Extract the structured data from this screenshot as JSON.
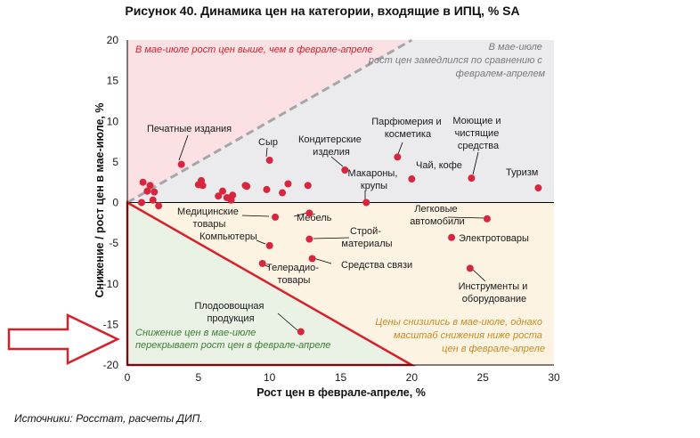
{
  "chart_data": {
    "type": "scatter",
    "title": "Рисунок 40. Динамика цен на категории, входящие в ИПЦ, % SA",
    "xlabel": "Рост цен в феврале-апреле, %",
    "ylabel": "Снижение / рост цен в мае-июле, %",
    "xlim": [
      0,
      30
    ],
    "ylim": [
      -20,
      20
    ],
    "xticks": [
      "0",
      "5",
      "10",
      "15",
      "20",
      "25",
      "30"
    ],
    "yticks": [
      "20",
      "15",
      "10",
      "5",
      "0",
      "-5",
      "-10",
      "-15",
      "-20"
    ],
    "source": "Источники: Росстат, расчеты ДИП.",
    "regions": {
      "upper_left": "В мае-июле рост цен выше, чем в феврале-апреле",
      "upper_right": [
        "В мае-июле",
        "рост цен замедлился по сравнению с",
        "февралем-апрелем"
      ],
      "lower_right": [
        "Цены снизились в мае-июле, однако",
        "масштаб снижения ниже роста",
        "цен в феврале-апреле"
      ],
      "lower_left": [
        "Снижение цен в мае-июле",
        "перекрывает рост цен в феврале-апреле"
      ]
    },
    "labels": {
      "pechatnye": "Печатные издания",
      "syr": "Сыр",
      "konditer": [
        "Кондитерские",
        "изделия"
      ],
      "parfum": [
        "Парфюмерия и",
        "косметика"
      ],
      "moyuschie": [
        "Моющие и",
        "чистящие",
        "средства"
      ],
      "turizm": "Туризм",
      "makarony": [
        "Макароны,",
        "крупы"
      ],
      "chai": "Чай, кофе",
      "medic": [
        "Медицинские",
        "товары"
      ],
      "mebel": "Мебель",
      "avto": [
        "Легковые",
        "автомобили"
      ],
      "kompyutery": "Компьютеры",
      "stroy": [
        "Строй-",
        "материалы"
      ],
      "elektro": "Электротовары",
      "tele": [
        "Телерадио-",
        "товары"
      ],
      "svyaz": "Средства связи",
      "instrumenty": [
        "Инструменты и",
        "оборудование"
      ],
      "plodo": [
        "Плодоовощная",
        "продукция"
      ]
    },
    "points": [
      {
        "x": 3.8,
        "y": 4.7
      },
      {
        "x": 10.0,
        "y": 5.2
      },
      {
        "x": 15.3,
        "y": 4.0
      },
      {
        "x": 19.0,
        "y": 5.6
      },
      {
        "x": 24.2,
        "y": 3.0
      },
      {
        "x": 28.9,
        "y": 1.8
      },
      {
        "x": 16.8,
        "y": 0.0
      },
      {
        "x": 20.0,
        "y": 2.9
      },
      {
        "x": 10.4,
        "y": -1.8
      },
      {
        "x": 12.8,
        "y": -1.3
      },
      {
        "x": 25.3,
        "y": -2.0
      },
      {
        "x": 10.0,
        "y": -5.3
      },
      {
        "x": 12.8,
        "y": -4.5
      },
      {
        "x": 22.8,
        "y": -4.3
      },
      {
        "x": 9.5,
        "y": -7.5
      },
      {
        "x": 13.0,
        "y": -6.9
      },
      {
        "x": 24.1,
        "y": -8.1
      },
      {
        "x": 12.2,
        "y": -15.9
      },
      {
        "x": 1.0,
        "y": 0.0
      },
      {
        "x": 1.1,
        "y": 2.5
      },
      {
        "x": 1.4,
        "y": 1.4
      },
      {
        "x": 1.8,
        "y": 0.3
      },
      {
        "x": 1.9,
        "y": 1.3
      },
      {
        "x": 1.6,
        "y": 2.1
      },
      {
        "x": 2.2,
        "y": -0.4
      },
      {
        "x": 5.0,
        "y": 2.2
      },
      {
        "x": 5.2,
        "y": 2.7
      },
      {
        "x": 5.3,
        "y": 2.1
      },
      {
        "x": 6.4,
        "y": 0.8
      },
      {
        "x": 6.7,
        "y": 1.4
      },
      {
        "x": 7.0,
        "y": 0.6
      },
      {
        "x": 7.4,
        "y": 0.9
      },
      {
        "x": 7.3,
        "y": 0.3
      },
      {
        "x": 8.4,
        "y": 2.0
      },
      {
        "x": 9.8,
        "y": 1.6
      },
      {
        "x": 10.9,
        "y": 1.2
      },
      {
        "x": 11.3,
        "y": 2.3
      },
      {
        "x": 12.7,
        "y": 2.1
      },
      {
        "x": 8.3,
        "y": 2.1
      }
    ]
  }
}
